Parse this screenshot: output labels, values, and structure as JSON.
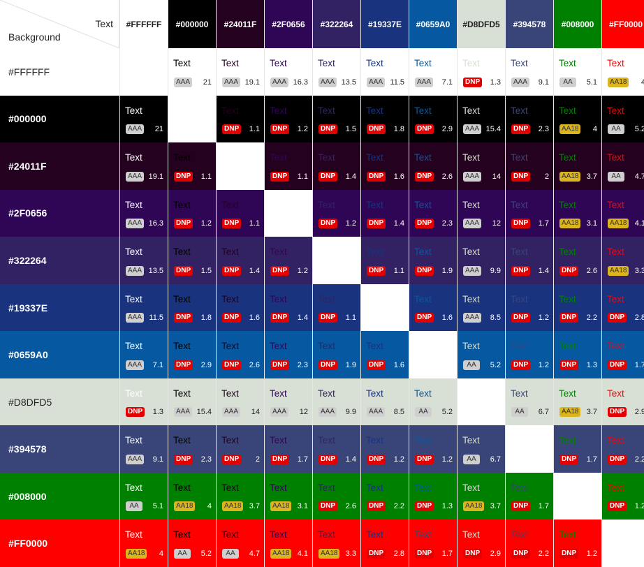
{
  "corner": {
    "text_label": "Text",
    "background_label": "Background"
  },
  "colors": [
    {
      "hex": "#FFFFFF",
      "label": "#FFFFFF"
    },
    {
      "hex": "#000000",
      "label": "#000000"
    },
    {
      "hex": "#24011F",
      "label": "#24011F"
    },
    {
      "hex": "#2F0656",
      "label": "#2F0656"
    },
    {
      "hex": "#322264",
      "label": "#322264"
    },
    {
      "hex": "#19337E",
      "label": "#19337E"
    },
    {
      "hex": "#0659A0",
      "label": "#0659A0"
    },
    {
      "hex": "#D8DFD5",
      "label": "#D8DFD5"
    },
    {
      "hex": "#394578",
      "label": "#394578"
    },
    {
      "hex": "#008000",
      "label": "#008000"
    },
    {
      "hex": "#FF0000",
      "label": "#FF0000"
    }
  ],
  "sample_text": "Text",
  "rows": [
    [
      null,
      [
        "AAA",
        "21"
      ],
      [
        "AAA",
        "19.1"
      ],
      [
        "AAA",
        "16.3"
      ],
      [
        "AAA",
        "13.5"
      ],
      [
        "AAA",
        "11.5"
      ],
      [
        "AAA",
        "7.1"
      ],
      [
        "DNP",
        "1.3"
      ],
      [
        "AAA",
        "9.1"
      ],
      [
        "AA",
        "5.1"
      ],
      [
        "AA18",
        "4"
      ]
    ],
    [
      [
        "AAA",
        "21"
      ],
      null,
      [
        "DNP",
        "1.1"
      ],
      [
        "DNP",
        "1.2"
      ],
      [
        "DNP",
        "1.5"
      ],
      [
        "DNP",
        "1.8"
      ],
      [
        "DNP",
        "2.9"
      ],
      [
        "AAA",
        "15.4"
      ],
      [
        "DNP",
        "2.3"
      ],
      [
        "AA18",
        "4"
      ],
      [
        "AA",
        "5.2"
      ]
    ],
    [
      [
        "AAA",
        "19.1"
      ],
      [
        "DNP",
        "1.1"
      ],
      null,
      [
        "DNP",
        "1.1"
      ],
      [
        "DNP",
        "1.4"
      ],
      [
        "DNP",
        "1.6"
      ],
      [
        "DNP",
        "2.6"
      ],
      [
        "AAA",
        "14"
      ],
      [
        "DNP",
        "2"
      ],
      [
        "AA18",
        "3.7"
      ],
      [
        "AA",
        "4.7"
      ]
    ],
    [
      [
        "AAA",
        "16.3"
      ],
      [
        "DNP",
        "1.2"
      ],
      [
        "DNP",
        "1.1"
      ],
      null,
      [
        "DNP",
        "1.2"
      ],
      [
        "DNP",
        "1.4"
      ],
      [
        "DNP",
        "2.3"
      ],
      [
        "AAA",
        "12"
      ],
      [
        "DNP",
        "1.7"
      ],
      [
        "AA18",
        "3.1"
      ],
      [
        "AA18",
        "4.1"
      ]
    ],
    [
      [
        "AAA",
        "13.5"
      ],
      [
        "DNP",
        "1.5"
      ],
      [
        "DNP",
        "1.4"
      ],
      [
        "DNP",
        "1.2"
      ],
      null,
      [
        "DNP",
        "1.1"
      ],
      [
        "DNP",
        "1.9"
      ],
      [
        "AAA",
        "9.9"
      ],
      [
        "DNP",
        "1.4"
      ],
      [
        "DNP",
        "2.6"
      ],
      [
        "AA18",
        "3.3"
      ]
    ],
    [
      [
        "AAA",
        "11.5"
      ],
      [
        "DNP",
        "1.8"
      ],
      [
        "DNP",
        "1.6"
      ],
      [
        "DNP",
        "1.4"
      ],
      [
        "DNP",
        "1.1"
      ],
      null,
      [
        "DNP",
        "1.6"
      ],
      [
        "AAA",
        "8.5"
      ],
      [
        "DNP",
        "1.2"
      ],
      [
        "DNP",
        "2.2"
      ],
      [
        "DNP",
        "2.8"
      ]
    ],
    [
      [
        "AAA",
        "7.1"
      ],
      [
        "DNP",
        "2.9"
      ],
      [
        "DNP",
        "2.6"
      ],
      [
        "DNP",
        "2.3"
      ],
      [
        "DNP",
        "1.9"
      ],
      [
        "DNP",
        "1.6"
      ],
      null,
      [
        "AA",
        "5.2"
      ],
      [
        "DNP",
        "1.2"
      ],
      [
        "DNP",
        "1.3"
      ],
      [
        "DNP",
        "1.7"
      ]
    ],
    [
      [
        "DNP",
        "1.3"
      ],
      [
        "AAA",
        "15.4"
      ],
      [
        "AAA",
        "14"
      ],
      [
        "AAA",
        "12"
      ],
      [
        "AAA",
        "9.9"
      ],
      [
        "AAA",
        "8.5"
      ],
      [
        "AA",
        "5.2"
      ],
      null,
      [
        "AA",
        "6.7"
      ],
      [
        "AA18",
        "3.7"
      ],
      [
        "DNP",
        "2.9"
      ]
    ],
    [
      [
        "AAA",
        "9.1"
      ],
      [
        "DNP",
        "2.3"
      ],
      [
        "DNP",
        "2"
      ],
      [
        "DNP",
        "1.7"
      ],
      [
        "DNP",
        "1.4"
      ],
      [
        "DNP",
        "1.2"
      ],
      [
        "DNP",
        "1.2"
      ],
      [
        "AA",
        "6.7"
      ],
      null,
      [
        "DNP",
        "1.7"
      ],
      [
        "DNP",
        "2.2"
      ]
    ],
    [
      [
        "AA",
        "5.1"
      ],
      [
        "AA18",
        "4"
      ],
      [
        "AA18",
        "3.7"
      ],
      [
        "AA18",
        "3.1"
      ],
      [
        "DNP",
        "2.6"
      ],
      [
        "DNP",
        "2.2"
      ],
      [
        "DNP",
        "1.3"
      ],
      [
        "AA18",
        "3.7"
      ],
      [
        "DNP",
        "1.7"
      ],
      null,
      [
        "DNP",
        "1.2"
      ]
    ],
    [
      [
        "AA18",
        "4"
      ],
      [
        "AA",
        "5.2"
      ],
      [
        "AA",
        "4.7"
      ],
      [
        "AA18",
        "4.1"
      ],
      [
        "AA18",
        "3.3"
      ],
      [
        "DNP",
        "2.8"
      ],
      [
        "DNP",
        "1.7"
      ],
      [
        "DNP",
        "2.9"
      ],
      [
        "DNP",
        "2.2"
      ],
      [
        "DNP",
        "1.2"
      ],
      null
    ]
  ]
}
